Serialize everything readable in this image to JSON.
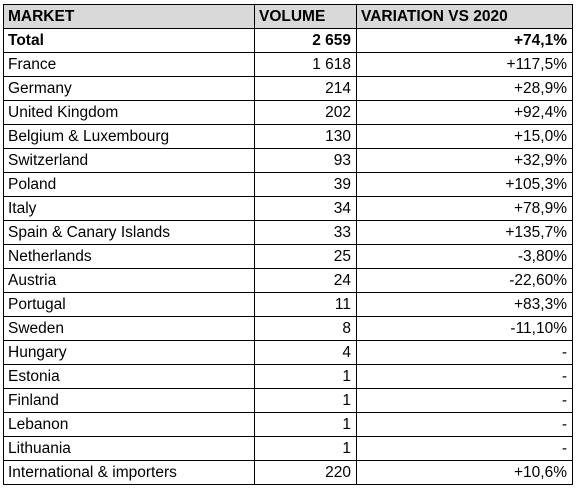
{
  "table": {
    "headers": [
      "MARKET",
      "VOLUME",
      "VARIATION VS 2020"
    ],
    "rows": [
      {
        "market": "Total",
        "volume": "2 659",
        "variation": "+74,1%"
      },
      {
        "market": "France",
        "volume": "1 618",
        "variation": "+117,5%"
      },
      {
        "market": "Germany",
        "volume": "214",
        "variation": "+28,9%"
      },
      {
        "market": "United Kingdom",
        "volume": "202",
        "variation": "+92,4%"
      },
      {
        "market": "Belgium & Luxembourg",
        "volume": "130",
        "variation": "+15,0%"
      },
      {
        "market": "Switzerland",
        "volume": "93",
        "variation": "+32,9%"
      },
      {
        "market": "Poland",
        "volume": "39",
        "variation": "+105,3%"
      },
      {
        "market": "Italy",
        "volume": "34",
        "variation": "+78,9%"
      },
      {
        "market": "Spain & Canary Islands",
        "volume": "33",
        "variation": "+135,7%"
      },
      {
        "market": "Netherlands",
        "volume": "25",
        "variation": "-3,80%"
      },
      {
        "market": "Austria",
        "volume": "24",
        "variation": "-22,60%"
      },
      {
        "market": "Portugal",
        "volume": "11",
        "variation": "+83,3%"
      },
      {
        "market": "Sweden",
        "volume": "8",
        "variation": "-11,10%"
      },
      {
        "market": "Hungary",
        "volume": "4",
        "variation": "-"
      },
      {
        "market": "Estonia",
        "volume": "1",
        "variation": "-"
      },
      {
        "market": "Finland",
        "volume": "1",
        "variation": "-"
      },
      {
        "market": "Lebanon",
        "volume": "1",
        "variation": "-"
      },
      {
        "market": "Lithuania",
        "volume": "1",
        "variation": "-"
      },
      {
        "market": "International & importers",
        "volume": "220",
        "variation": "+10,6%"
      }
    ]
  },
  "colors": {
    "header_bg": "#d9d9d9",
    "border": "#000000"
  }
}
